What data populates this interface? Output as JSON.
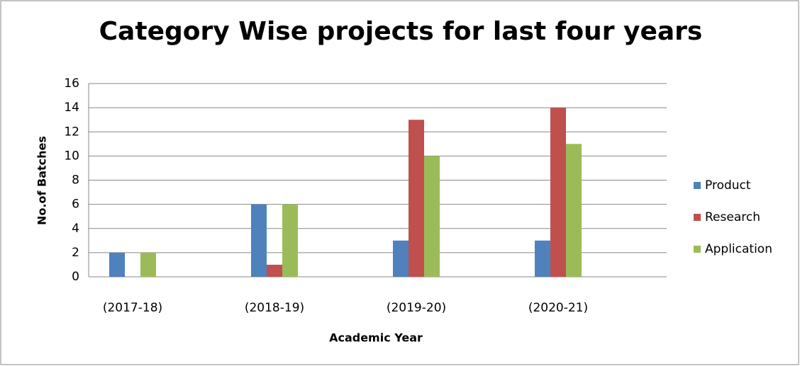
{
  "chart_data": {
    "type": "bar",
    "title": "Category Wise projects for last four years",
    "x_label": "Academic Year",
    "y_label": "No.of Batches",
    "categories": [
      "(2017-18)",
      "(2018-19)",
      "(2019-20)",
      "(2020-21)"
    ],
    "series": [
      {
        "name": "Product",
        "color": "#4f81bd",
        "values": [
          2,
          6,
          3,
          3
        ]
      },
      {
        "name": "Research",
        "color": "#c0504d",
        "values": [
          0,
          1,
          13,
          14
        ]
      },
      {
        "name": "Application",
        "color": "#9bbb59",
        "values": [
          2,
          6,
          10,
          11
        ]
      }
    ],
    "ylim": [
      0,
      16
    ],
    "yticks": [
      0,
      2,
      4,
      6,
      8,
      10,
      12,
      14,
      16
    ],
    "grid": true,
    "legend": "right"
  }
}
